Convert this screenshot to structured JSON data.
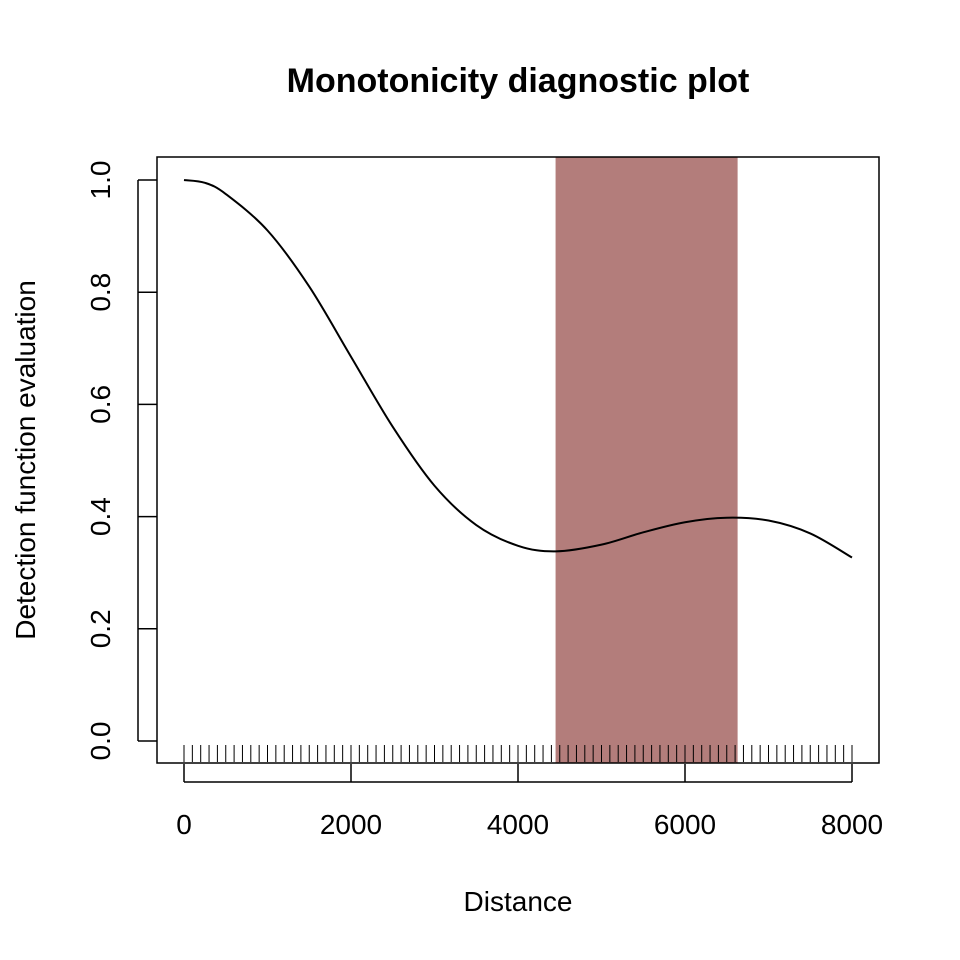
{
  "chart_data": {
    "type": "line",
    "title": "Monotonicity diagnostic plot",
    "xlabel": "Distance",
    "ylabel": "Detection function evaluation",
    "xlim": [
      0,
      8000
    ],
    "ylim": [
      0,
      1
    ],
    "x_ticks": [
      0,
      2000,
      4000,
      6000,
      8000
    ],
    "y_ticks": [
      0.0,
      0.2,
      0.4,
      0.6,
      0.8,
      1.0
    ],
    "x_tick_labels": [
      "0",
      "2000",
      "4000",
      "6000",
      "8000"
    ],
    "y_tick_labels": [
      "0.0",
      "0.2",
      "0.4",
      "0.6",
      "0.8",
      "1.0"
    ],
    "line_color": "#000000",
    "series": [
      {
        "x": [
          0,
          250,
          500,
          1000,
          1500,
          2000,
          2500,
          3000,
          3500,
          4000,
          4450,
          5000,
          5500,
          6000,
          6500,
          7000,
          7500,
          8000
        ],
        "y": [
          1.0,
          0.995,
          0.975,
          0.91,
          0.81,
          0.685,
          0.56,
          0.455,
          0.385,
          0.348,
          0.338,
          0.35,
          0.372,
          0.39,
          0.398,
          0.393,
          0.37,
          0.327
        ]
      }
    ],
    "highlight_region": {
      "x_start": 4450,
      "x_end": 6630,
      "color": "#b37d7b"
    },
    "rug_x_start": 0,
    "rug_x_end": 8000,
    "rug_step": 100
  }
}
